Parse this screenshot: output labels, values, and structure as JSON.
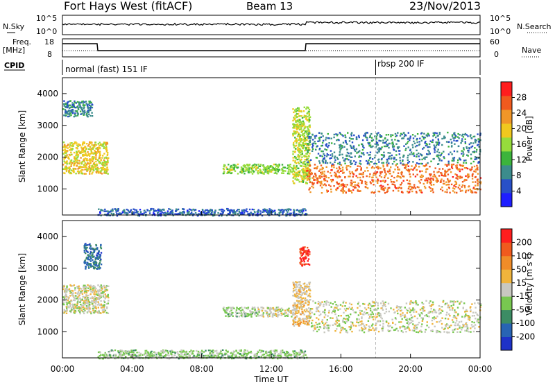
{
  "header": {
    "station": "Fort Hays West (fitACF)",
    "beam": "Beam 13",
    "date": "23/Nov/2013"
  },
  "noise_panel": {
    "left_label": "N.Sky",
    "right_label": "N.Search",
    "left_ticks": [
      "10^5",
      "10^0"
    ],
    "right_ticks": [
      "10^5",
      "10^0"
    ]
  },
  "freq_panel": {
    "left_label_1": "Freq.",
    "left_label_2": "[MHz]",
    "right_label": "Nave",
    "left_ticks": [
      "18",
      "8"
    ],
    "right_ticks": [
      "60",
      "0"
    ]
  },
  "cpid_panel": {
    "label": "CPID",
    "modes": [
      {
        "label": "normal (fast) 151 IF",
        "start_hour": 0
      },
      {
        "label": "rbsp 200 IF",
        "start_hour": 18
      }
    ]
  },
  "x_axis": {
    "label": "Time UT",
    "ticks": [
      "00:00",
      "04:00",
      "08:00",
      "12:00",
      "16:00",
      "20:00",
      "00:00"
    ]
  },
  "colors": {
    "power_scale": [
      "#1e1eff",
      "#2850c8",
      "#3c8c8c",
      "#3cb43c",
      "#96dc3c",
      "#f0c81e",
      "#f09628",
      "#f05a1e",
      "#ff1e1e"
    ],
    "velocity_scale": [
      "#1e32c8",
      "#2864b4",
      "#3c8c64",
      "#78c850",
      "#c8c8c0",
      "#f0b43c",
      "#f08c28",
      "#f05a1e",
      "#ff1e1e"
    ]
  },
  "chart_data": [
    {
      "type": "heatmap",
      "name": "power",
      "ylabel": "Slant Range [km]",
      "xlabel": "Time UT",
      "xlim": [
        0,
        24
      ],
      "ylim": [
        180,
        4500
      ],
      "yticks": [
        1000,
        2000,
        3000,
        4000
      ],
      "colorbar": {
        "label": "Power [dB]",
        "ticks": [
          "4",
          "8",
          "12",
          "16",
          "20",
          "24",
          "28"
        ],
        "range": [
          0,
          30
        ]
      },
      "echo_regions": [
        {
          "t0": 0.0,
          "t1": 2.6,
          "r0": 1500,
          "r1": 2500,
          "value": 18
        },
        {
          "t0": 0.0,
          "t1": 1.7,
          "r0": 3300,
          "r1": 3800,
          "value": 8
        },
        {
          "t0": 9.2,
          "t1": 13.2,
          "r0": 1500,
          "r1": 1800,
          "value": 14
        },
        {
          "t0": 13.2,
          "t1": 14.2,
          "r0": 1200,
          "r1": 3600,
          "value": 16
        },
        {
          "t0": 14.0,
          "t1": 24.0,
          "r0": 900,
          "r1": 1800,
          "value": 24
        },
        {
          "t0": 14.0,
          "t1": 24.0,
          "r0": 1800,
          "r1": 2800,
          "value": 8
        },
        {
          "t0": 2.0,
          "t1": 14.0,
          "r0": 180,
          "r1": 400,
          "value": 6
        }
      ]
    },
    {
      "type": "heatmap",
      "name": "velocity",
      "ylabel": "Slant Range [km]",
      "xlabel": "Time UT",
      "xlim": [
        0,
        24
      ],
      "ylim": [
        180,
        4500
      ],
      "yticks": [
        1000,
        2000,
        3000,
        4000
      ],
      "colorbar": {
        "label": "Velocity [m s^-1]",
        "ticks": [
          "200",
          "100",
          "50",
          "15",
          "-15",
          "-50",
          "-100",
          "-200"
        ],
        "range": [
          -250,
          250
        ]
      },
      "echo_regions": [
        {
          "t0": 0.0,
          "t1": 2.6,
          "r0": 1600,
          "r1": 2500,
          "value": 0
        },
        {
          "t0": 1.2,
          "t1": 2.2,
          "r0": 3000,
          "r1": 3800,
          "value": -150
        },
        {
          "t0": 9.2,
          "t1": 11.2,
          "r0": 1500,
          "r1": 1800,
          "value": -40
        },
        {
          "t0": 11.2,
          "t1": 13.2,
          "r0": 1500,
          "r1": 1800,
          "value": 0
        },
        {
          "t0": 13.2,
          "t1": 14.2,
          "r0": 1200,
          "r1": 2600,
          "value": 40
        },
        {
          "t0": 13.6,
          "t1": 14.2,
          "r0": 3100,
          "r1": 3700,
          "value": 200
        },
        {
          "t0": 14.2,
          "t1": 24.0,
          "r0": 1000,
          "r1": 2000,
          "value": 0
        },
        {
          "t0": 2.0,
          "t1": 14.0,
          "r0": 180,
          "r1": 450,
          "value": -40
        }
      ]
    }
  ]
}
